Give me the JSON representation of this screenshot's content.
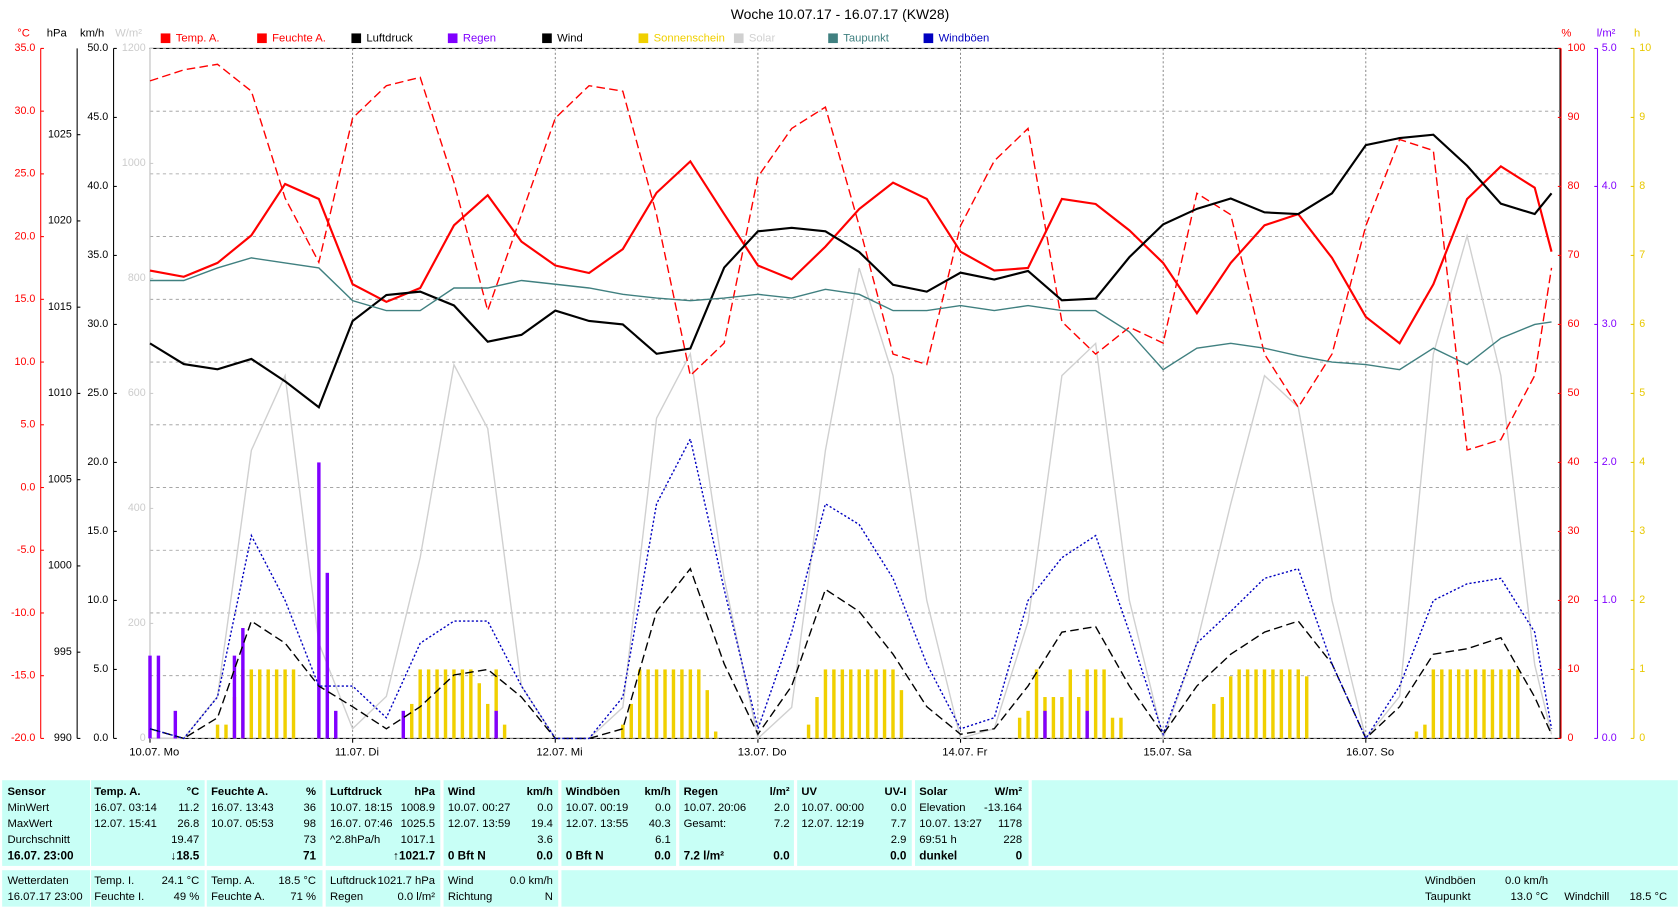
{
  "chart_data": {
    "type": "line",
    "title": "Woche 10.07.17 - 16.07.17 (KW28)",
    "xlim": [
      0,
      167
    ],
    "xticks": [
      {
        "value": 0,
        "label": "10.07.  Mo"
      },
      {
        "value": 24,
        "label": "11.07.  Di"
      },
      {
        "value": 48,
        "label": "12.07.  Mi"
      },
      {
        "value": 72,
        "label": "13.07.  Do"
      },
      {
        "value": 96,
        "label": "14.07.  Fr"
      },
      {
        "value": 120,
        "label": "15.07.  Sa"
      },
      {
        "value": 144,
        "label": "16.07.  So"
      }
    ],
    "grid": true,
    "axes": {
      "temp": {
        "label": "°C",
        "color": "#ff0000",
        "lim": [
          -20,
          35
        ],
        "ticks": [
          {
            "value": -20,
            "label": "-20.0"
          },
          {
            "value": -15,
            "label": "-15.0"
          },
          {
            "value": -10,
            "label": "-10.0"
          },
          {
            "value": -5,
            "label": "-5.0"
          },
          {
            "value": 0,
            "label": "0.0"
          },
          {
            "value": 5,
            "label": "5.0"
          },
          {
            "value": 10,
            "label": "10.0"
          },
          {
            "value": 15,
            "label": "15.0"
          },
          {
            "value": 20,
            "label": "20.0"
          },
          {
            "value": 25,
            "label": "25.0"
          },
          {
            "value": 30,
            "label": "30.0"
          },
          {
            "value": 35,
            "label": "35.0"
          }
        ]
      },
      "hpa": {
        "label": "hPa",
        "color": "#000000",
        "lim": [
          990,
          1030
        ],
        "ticks": [
          990,
          995,
          1000,
          1005,
          1010,
          1015,
          1020,
          1025
        ]
      },
      "kmh": {
        "label": "km/h",
        "color": "#000000",
        "lim": [
          0,
          50
        ],
        "ticks": [
          {
            "value": 0,
            "label": "0.0"
          },
          {
            "value": 5,
            "label": "5.0"
          },
          {
            "value": 10,
            "label": "10.0"
          },
          {
            "value": 15,
            "label": "15.0"
          },
          {
            "value": 20,
            "label": "20.0"
          },
          {
            "value": 25,
            "label": "25.0"
          },
          {
            "value": 30,
            "label": "30.0"
          },
          {
            "value": 35,
            "label": "35.0"
          },
          {
            "value": 40,
            "label": "40.0"
          },
          {
            "value": 45,
            "label": "45.0"
          },
          {
            "value": 50,
            "label": "50.0"
          }
        ]
      },
      "wm2": {
        "label": "W/m²",
        "color": "#cccccc",
        "lim": [
          0,
          1200
        ],
        "ticks": [
          0,
          200,
          400,
          600,
          800,
          1000,
          1200
        ]
      },
      "pct": {
        "label": "%",
        "color": "#ff0000",
        "lim": [
          0,
          100
        ],
        "ticks": [
          0,
          10,
          20,
          30,
          40,
          50,
          60,
          70,
          80,
          90,
          100
        ]
      },
      "lm2": {
        "label": "l/m²",
        "color": "#8000ff",
        "lim": [
          0,
          5
        ],
        "ticks": [
          {
            "value": 0,
            "label": "0.0"
          },
          {
            "value": 1,
            "label": "1.0"
          },
          {
            "value": 2,
            "label": "2.0"
          },
          {
            "value": 3,
            "label": "3.0"
          },
          {
            "value": 4,
            "label": "4.0"
          },
          {
            "value": 5,
            "label": "5.0"
          }
        ]
      },
      "h": {
        "label": "h",
        "color": "#e8c800",
        "lim": [
          0,
          10
        ],
        "ticks": [
          0,
          1,
          2,
          3,
          4,
          5,
          6,
          7,
          8,
          9,
          10
        ]
      }
    },
    "x": [
      0,
      4,
      8,
      12,
      16,
      20,
      24,
      28,
      32,
      36,
      40,
      44,
      48,
      52,
      56,
      60,
      64,
      68,
      72,
      76,
      80,
      84,
      88,
      92,
      96,
      100,
      104,
      108,
      112,
      116,
      120,
      124,
      128,
      132,
      136,
      140,
      144,
      148,
      152,
      156,
      160,
      164,
      166
    ],
    "series": [
      {
        "name": "Temp. A.",
        "color": "#ff0000",
        "axis": "temp",
        "style": "solid",
        "values": [
          17.3,
          16.8,
          17.9,
          20.1,
          24.2,
          23.0,
          16.2,
          14.8,
          15.9,
          20.9,
          23.3,
          19.6,
          17.7,
          17.1,
          19.0,
          23.5,
          26.0,
          21.8,
          17.7,
          16.6,
          19.2,
          22.2,
          24.3,
          23.0,
          18.8,
          17.3,
          17.5,
          23.0,
          22.6,
          20.5,
          17.9,
          13.9,
          17.9,
          20.9,
          21.8,
          18.3,
          13.6,
          11.5,
          16.2,
          23.0,
          25.6,
          23.9,
          18.8
        ]
      },
      {
        "name": "Feuchte A.",
        "color": "#ff0000",
        "axis": "pct",
        "style": "dashed",
        "values": [
          95.3,
          96.9,
          97.7,
          93.8,
          78.3,
          69,
          89.9,
          94.6,
          95.8,
          80.6,
          62,
          75.9,
          89.9,
          94.6,
          93.8,
          75.9,
          52.6,
          57.3,
          81.4,
          88.4,
          91.5,
          74.3,
          55.7,
          54.2,
          74.3,
          83.7,
          88.4,
          60.4,
          55.7,
          59.6,
          57.3,
          79,
          75.9,
          55.7,
          48,
          55.7,
          74.3,
          86.8,
          85.2,
          41.8,
          43.3,
          52.6,
          68.2
        ]
      },
      {
        "name": "Luftdruck",
        "color": "#000000",
        "axis": "hpa",
        "style": "solid",
        "values": [
          1012.9,
          1011.7,
          1011.4,
          1012,
          1010.7,
          1009.2,
          1014.2,
          1015.7,
          1015.9,
          1015.1,
          1013,
          1013.4,
          1014.8,
          1014.2,
          1014,
          1012.3,
          1012.6,
          1017.3,
          1019.4,
          1019.6,
          1019.4,
          1018.2,
          1016.3,
          1015.9,
          1017,
          1016.6,
          1017.1,
          1015.4,
          1015.5,
          1017.9,
          1019.8,
          1020.7,
          1021.3,
          1020.5,
          1020.4,
          1021.6,
          1024.4,
          1024.8,
          1025,
          1023.2,
          1021,
          1020.4,
          1021.6
        ]
      },
      {
        "name": "Regen",
        "color": "#8000ff",
        "axis": "lm2",
        "style": "bar",
        "x": [
          0,
          1,
          3,
          10,
          11,
          20,
          21,
          22,
          30,
          41,
          106,
          111
        ],
        "values": [
          0.6,
          0.6,
          0.2,
          0.6,
          0.8,
          2.0,
          1.2,
          0.2,
          0.2,
          0.2,
          0.2,
          0.2
        ]
      },
      {
        "name": "Wind",
        "color": "#000000",
        "axis": "kmh",
        "style": "dashed",
        "values": [
          0.7,
          0,
          1.5,
          8.5,
          6.9,
          3.8,
          2.3,
          0.7,
          2.3,
          4.6,
          5,
          3,
          0,
          0,
          0.7,
          9.2,
          12.3,
          5.4,
          0.3,
          3.8,
          10.8,
          9.2,
          6.1,
          2.3,
          0.3,
          0.7,
          3.8,
          7.7,
          8.1,
          3.8,
          0.3,
          3.8,
          6.1,
          7.7,
          8.5,
          5.4,
          0,
          2.3,
          6.1,
          6.5,
          7.3,
          3,
          0.3
        ]
      },
      {
        "name": "Sonnenschein",
        "color": "#f0d000",
        "axis": "h",
        "style": "bar",
        "x": [
          8,
          9,
          10,
          11,
          12,
          13,
          14,
          15,
          16,
          17,
          31,
          32,
          33,
          34,
          35,
          36,
          37,
          38,
          39,
          40,
          41,
          42,
          56,
          57,
          58,
          59,
          60,
          61,
          62,
          63,
          64,
          65,
          66,
          67,
          78,
          79,
          80,
          81,
          82,
          83,
          84,
          85,
          86,
          87,
          88,
          89,
          103,
          104,
          105,
          106,
          107,
          108,
          109,
          110,
          111,
          112,
          113,
          114,
          115,
          126,
          127,
          128,
          129,
          130,
          131,
          132,
          133,
          134,
          135,
          136,
          137,
          150,
          151,
          152,
          153,
          154,
          155,
          156,
          157,
          158,
          159,
          160,
          161,
          162
        ],
        "values": [
          0.2,
          0.2,
          0.6,
          1,
          1,
          1,
          1,
          1,
          1,
          1,
          0.5,
          1,
          1,
          1,
          1,
          1,
          1,
          1,
          0.8,
          0.5,
          1,
          0.2,
          0.2,
          0.5,
          1,
          1,
          1,
          1,
          1,
          1,
          1,
          1,
          0.7,
          0.1,
          0.2,
          0.6,
          1,
          1,
          1,
          1,
          1,
          1,
          1,
          1,
          1,
          0.7,
          0.3,
          0.4,
          1,
          0.6,
          0.6,
          0.6,
          1,
          0.6,
          1,
          1,
          1,
          0.3,
          0.3,
          0.5,
          0.6,
          0.9,
          1,
          1,
          1,
          1,
          1,
          1,
          1,
          1,
          0.9,
          0.1,
          0.2,
          1,
          1,
          1,
          1,
          1,
          1,
          1,
          1,
          1,
          1,
          1
        ]
      },
      {
        "name": "Solar",
        "color": "#d0d0d0",
        "axis": "wm2",
        "style": "solid",
        "values": [
          0,
          0,
          73,
          501,
          631,
          166,
          17,
          73,
          315,
          650,
          539,
          91,
          0,
          0,
          54,
          557,
          669,
          278,
          0,
          54,
          501,
          818,
          631,
          240,
          0,
          17,
          203,
          631,
          687,
          240,
          0,
          166,
          408,
          631,
          576,
          240,
          0,
          73,
          669,
          874,
          631,
          128,
          7
        ]
      },
      {
        "name": "Taupunkt",
        "color": "#408080",
        "axis": "temp",
        "style": "solid",
        "values": [
          16.5,
          16.5,
          17.5,
          18.3,
          17.9,
          17.5,
          14.9,
          14.1,
          14.1,
          15.9,
          15.9,
          16.5,
          16.2,
          15.9,
          15.4,
          15.1,
          14.9,
          15.1,
          15.4,
          15.1,
          15.8,
          15.4,
          14.1,
          14.1,
          14.5,
          14.1,
          14.5,
          14.1,
          14.1,
          12.4,
          9.4,
          11.1,
          11.5,
          11.1,
          10.5,
          10,
          9.8,
          9.4,
          11.1,
          9.8,
          11.9,
          13,
          13.2
        ]
      },
      {
        "name": "Windböen",
        "color": "#0000c0",
        "axis": "kmh",
        "style": "dotted",
        "values": [
          0.7,
          0,
          3,
          14.7,
          10,
          3.8,
          3.8,
          1.5,
          6.9,
          8.5,
          8.5,
          3.8,
          0,
          0,
          3,
          17,
          21.7,
          10.8,
          0.7,
          7.7,
          17,
          15.5,
          11.6,
          5.4,
          0.7,
          1.5,
          10,
          13.1,
          14.7,
          7.7,
          0.3,
          6.9,
          9.2,
          11.6,
          12.3,
          5.4,
          0,
          3.8,
          10,
          11.2,
          11.6,
          7.7,
          0.7
        ]
      }
    ]
  },
  "table": {
    "header": [
      "Sensor",
      "Temp. A.",
      "°C",
      "Feuchte A.",
      "%",
      "Luftdruck",
      "hPa",
      "Wind",
      "km/h",
      "Windböen",
      "km/h",
      "Regen",
      "l/m²",
      "UV",
      "UV-I",
      "Solar",
      "W/m²"
    ],
    "rows": [
      [
        "MinWert",
        "16.07.  03:14",
        "11.2",
        "16.07.  13:43",
        "36",
        "10.07.  18:15",
        "1008.9",
        "10.07.  00:27",
        "0.0",
        "10.07.  00:19",
        "0.0",
        "10.07.  20:06",
        "2.0",
        "10.07.  00:00",
        "0.0",
        "Elevation",
        "-13.164"
      ],
      [
        "MaxWert",
        "12.07.  15:41",
        "26.8",
        "10.07.  05:53",
        "98",
        "16.07.  07:46",
        "1025.5",
        "12.07.  13:59",
        "19.4",
        "12.07.  13:55",
        "40.3",
        "Gesamt:",
        "7.2",
        "12.07.  12:19",
        "7.7",
        "10.07.  13:27",
        "1178"
      ],
      [
        "Durchschnitt",
        null,
        "19.47",
        null,
        "73",
        "^2.8hPa/h",
        "1017.1",
        null,
        "3.6",
        null,
        "6.1",
        null,
        null,
        null,
        "2.9",
        "69:51 h",
        "228"
      ],
      [
        "16.07.  23:00",
        null,
        "↓18.5",
        null,
        "71",
        null,
        "↑1021.7",
        "0 Bft N",
        "0.0",
        "0 Bft N",
        "0.0",
        "7.2 l/m²",
        "0.0",
        null,
        "0.0",
        "dunkel",
        "0"
      ]
    ]
  },
  "footer": [
    {
      "label": "Wetterdaten",
      "value": "16.07.17 23:00"
    },
    {
      "label": "Temp. I.",
      "value": "24.1 °C"
    },
    {
      "label": "Feuchte I.",
      "value": "49 %"
    },
    {
      "label": "Temp. A.",
      "value": "18.5 °C"
    },
    {
      "label": "Feuchte A.",
      "value": "71 %"
    },
    {
      "label": "Luftdruck",
      "value": "1021.7 hPa"
    },
    {
      "label": "Regen",
      "value": "0.0 l/m²"
    },
    {
      "label": "Wind",
      "value": "0.0 km/h"
    },
    {
      "label": "Richtung",
      "value": "N"
    },
    {
      "label": "Windböen",
      "value": "0.0 km/h"
    },
    {
      "label": "Taupunkt",
      "value": "13.0 °C"
    },
    {
      "label": "Windchill",
      "value": "18.5 °C"
    }
  ]
}
